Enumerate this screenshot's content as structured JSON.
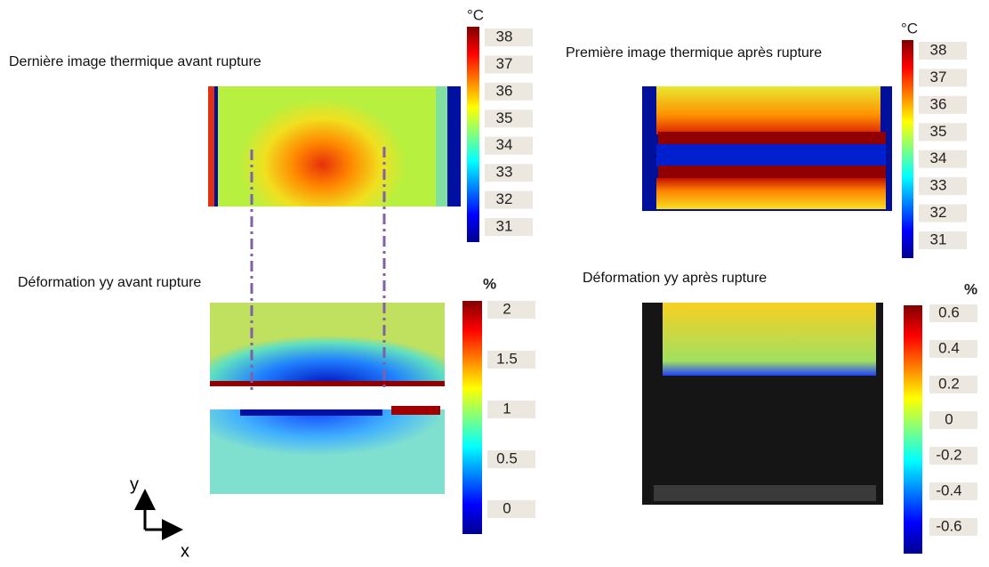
{
  "panels": [
    {
      "title": "Dernière image thermique avant rupture",
      "unit": "°C",
      "colorbar_labels": [
        38,
        37,
        36,
        35,
        34,
        33,
        32,
        31
      ]
    },
    {
      "title": "Première image thermique après rupture",
      "unit": "°C",
      "colorbar_labels": [
        38,
        37,
        36,
        35,
        34,
        33,
        32,
        31
      ]
    },
    {
      "title": "Déformation yy avant rupture",
      "unit": "%",
      "colorbar_labels": [
        2,
        1.5,
        1,
        0.5,
        0
      ]
    },
    {
      "title": "Déformation yy après rupture",
      "unit": "%",
      "colorbar_labels": [
        0.6,
        0.4,
        0.2,
        0,
        -0.2,
        -0.4,
        -0.6
      ]
    }
  ],
  "axes": {
    "y": "y",
    "x": "x"
  }
}
